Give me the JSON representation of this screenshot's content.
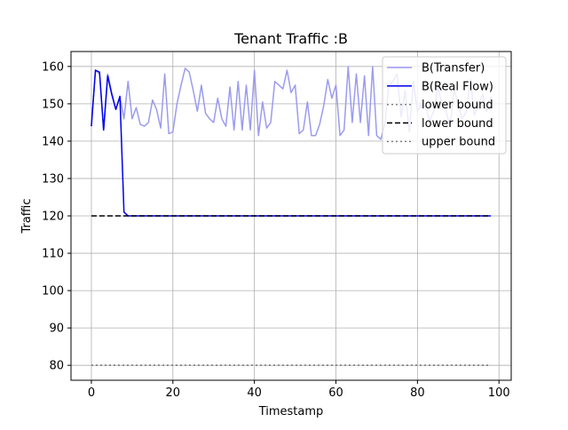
{
  "chart_data": {
    "type": "line",
    "title": "Tenant Traffic :B",
    "xlabel": "Timestamp",
    "ylabel": "Traffic",
    "xlim": [
      -5,
      103
    ],
    "ylim": [
      76,
      164
    ],
    "x_ticks": [
      0,
      20,
      40,
      60,
      80,
      100
    ],
    "y_ticks": [
      80,
      90,
      100,
      110,
      120,
      130,
      140,
      150,
      160
    ],
    "grid": true,
    "legend_placement": "top-right",
    "series": [
      {
        "name": "B(Transfer)",
        "color": "#9b9bf0",
        "style": "solid",
        "x": [
          0,
          1,
          2,
          3,
          4,
          5,
          6,
          7,
          8,
          9,
          10,
          11,
          12,
          13,
          14,
          15,
          16,
          17,
          18,
          19,
          20,
          21,
          22,
          23,
          24,
          25,
          26,
          27,
          28,
          29,
          30,
          31,
          32,
          33,
          34,
          35,
          36,
          37,
          38,
          39,
          40,
          41,
          42,
          43,
          44,
          45,
          46,
          47,
          48,
          49,
          50,
          51,
          52,
          53,
          54,
          55,
          56,
          57,
          58,
          59,
          60,
          61,
          62,
          63,
          64,
          65,
          66,
          67,
          68,
          69,
          70,
          71,
          72,
          73,
          74,
          75,
          76,
          77,
          78,
          79,
          80,
          81,
          82,
          83,
          84,
          85,
          86,
          87,
          88,
          89,
          90,
          91,
          92,
          93,
          94,
          95,
          96,
          97,
          98
        ],
        "values": [
          144,
          159,
          158,
          143,
          158,
          153,
          148.5,
          152,
          146,
          156,
          146,
          149,
          144.5,
          144,
          145,
          151,
          148.5,
          143.5,
          158,
          142,
          142.5,
          150,
          155,
          159.5,
          158.5,
          153.5,
          148,
          155,
          147.5,
          146,
          145,
          151.5,
          146,
          144,
          154.5,
          143,
          156,
          143,
          155,
          143,
          159,
          141.5,
          150.5,
          143.5,
          145,
          156,
          155,
          154,
          159,
          153,
          155,
          142,
          143,
          150.5,
          141.5,
          141.5,
          144.5,
          149.5,
          156.5,
          151.5,
          155,
          141.5,
          143,
          160,
          145,
          158,
          145,
          157.5,
          141.5,
          160,
          141.5,
          140.5,
          144.5,
          155,
          156,
          158,
          146.5,
          153.5,
          142.5,
          156,
          148,
          150,
          149,
          145.5,
          148,
          154.5,
          150,
          148,
          144,
          154,
          149.5,
          146,
          148,
          156.5,
          147,
          150,
          152.5,
          148,
          152
        ]
      },
      {
        "name": "B(Real Flow)",
        "color": "#0000ee",
        "style": "solid",
        "x": [
          0,
          1,
          2,
          3,
          4,
          5,
          6,
          7,
          8,
          9,
          10,
          98
        ],
        "values": [
          144,
          159,
          158.5,
          143,
          157.5,
          152.5,
          148.5,
          152,
          121,
          120,
          120,
          120
        ]
      },
      {
        "name": "lower bound",
        "color": "#808080",
        "style": "dotted",
        "x": [
          0,
          98
        ],
        "values": [
          80,
          80
        ]
      },
      {
        "name": "lower bound",
        "color": "#000000",
        "style": "dashed",
        "x": [
          0,
          98
        ],
        "values": [
          120,
          120
        ]
      },
      {
        "name": "upper bound",
        "color": "#808080",
        "style": "dotted",
        "x": [
          0,
          98
        ],
        "values": [
          80,
          80
        ]
      }
    ]
  }
}
